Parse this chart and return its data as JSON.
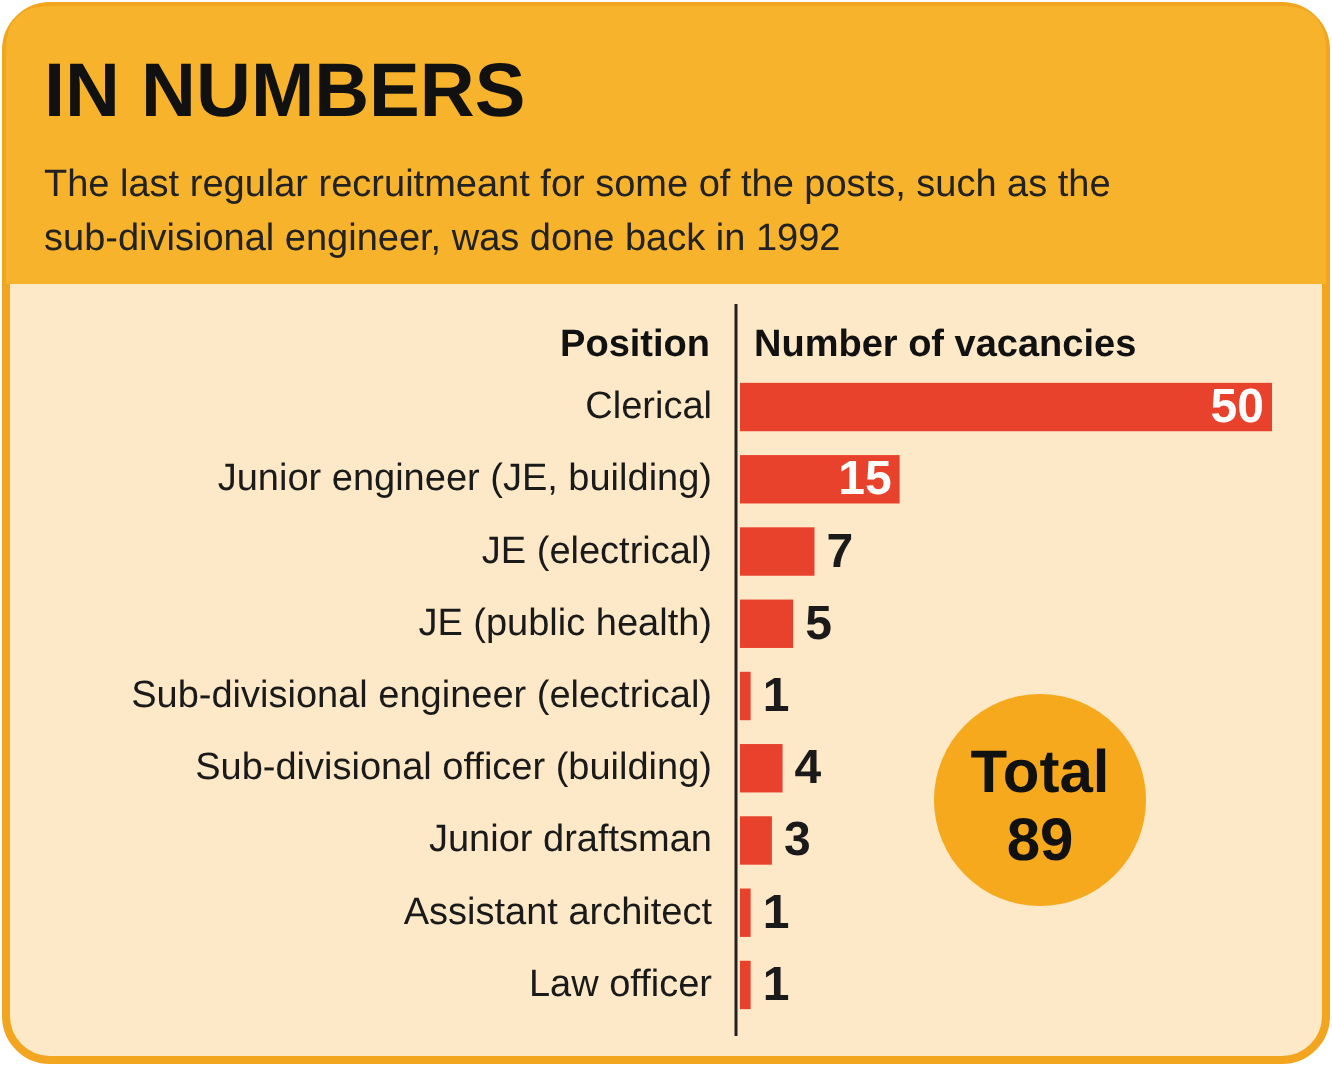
{
  "chart_data": {
    "type": "bar",
    "orientation": "horizontal",
    "title": "IN NUMBERS",
    "subtitle": "The last regular recruitmeant for some of the posts, such as the sub-divisional engineer, was done back in 1992",
    "ylabel": "Position",
    "xlabel": "Number of vacancies",
    "categories": [
      "Clerical",
      "Junior engineer (JE, building)",
      "JE (electrical)",
      "JE (public health)",
      "Sub-divisional engineer (electrical)",
      "Sub-divisional officer (building)",
      "Junior draftsman",
      "Assistant architect",
      "Law officer"
    ],
    "values": [
      50,
      15,
      7,
      5,
      1,
      4,
      3,
      1,
      1
    ],
    "color": "#e8412c",
    "xlim": [
      0,
      50
    ],
    "data_labels": true,
    "annotations": [
      "Total 89"
    ]
  }
}
